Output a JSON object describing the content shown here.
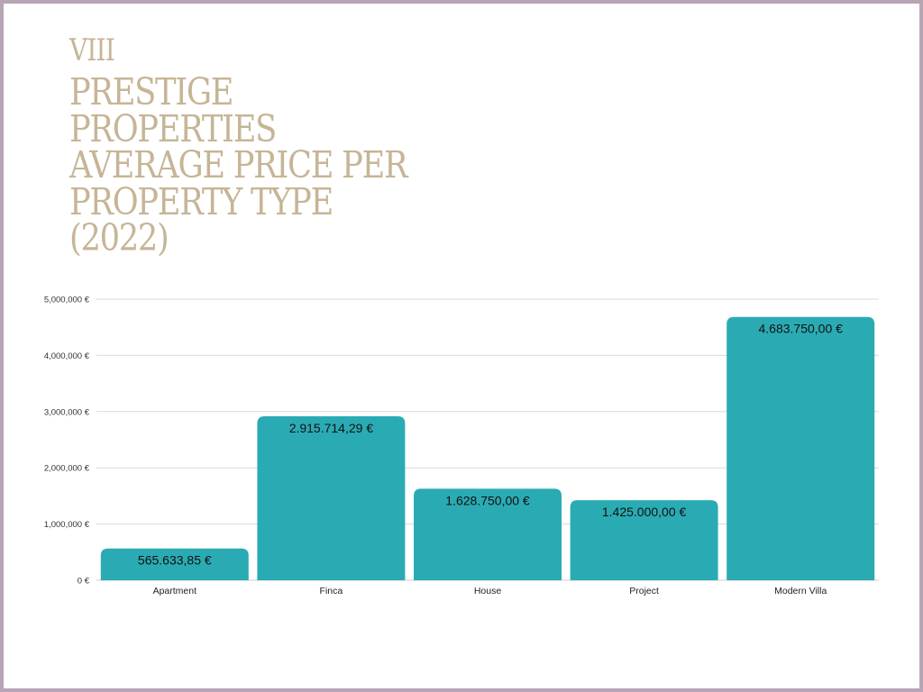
{
  "header": {
    "section_number": "VIII",
    "title_lines": [
      "PRESTIGE",
      "PROPERTIES",
      "AVERAGE PRICE PER",
      "PROPERTY TYPE",
      "(2022)"
    ]
  },
  "colors": {
    "bar": "#2aabb4",
    "title": "#c6b596",
    "grid": "#d9d9d9",
    "frame": "#b7a4b4"
  },
  "chart_data": {
    "type": "bar",
    "title": "PRESTIGE PROPERTIES AVERAGE PRICE PER PROPERTY TYPE (2022)",
    "categories": [
      "Apartment",
      "Finca",
      "House",
      "Project",
      "Modern Villa"
    ],
    "values": [
      565633.85,
      2915714.29,
      1628750.0,
      1425000.0,
      4683750.0
    ],
    "data_labels": [
      "565.633,85 €",
      "2.915.714,29 €",
      "1.628.750,00 €",
      "1.425.000,00 €",
      "4.683.750,00 €"
    ],
    "y_ticks": [
      0,
      1000000,
      2000000,
      3000000,
      4000000,
      5000000
    ],
    "y_tick_labels": [
      "0 €",
      "1,000,000 €",
      "2,000,000 €",
      "3,000,000 €",
      "4,000,000 €",
      "5,000,000 €"
    ],
    "ylim": [
      0,
      5000000
    ],
    "xlabel": "",
    "ylabel": "",
    "grid": true,
    "legend": "none"
  }
}
